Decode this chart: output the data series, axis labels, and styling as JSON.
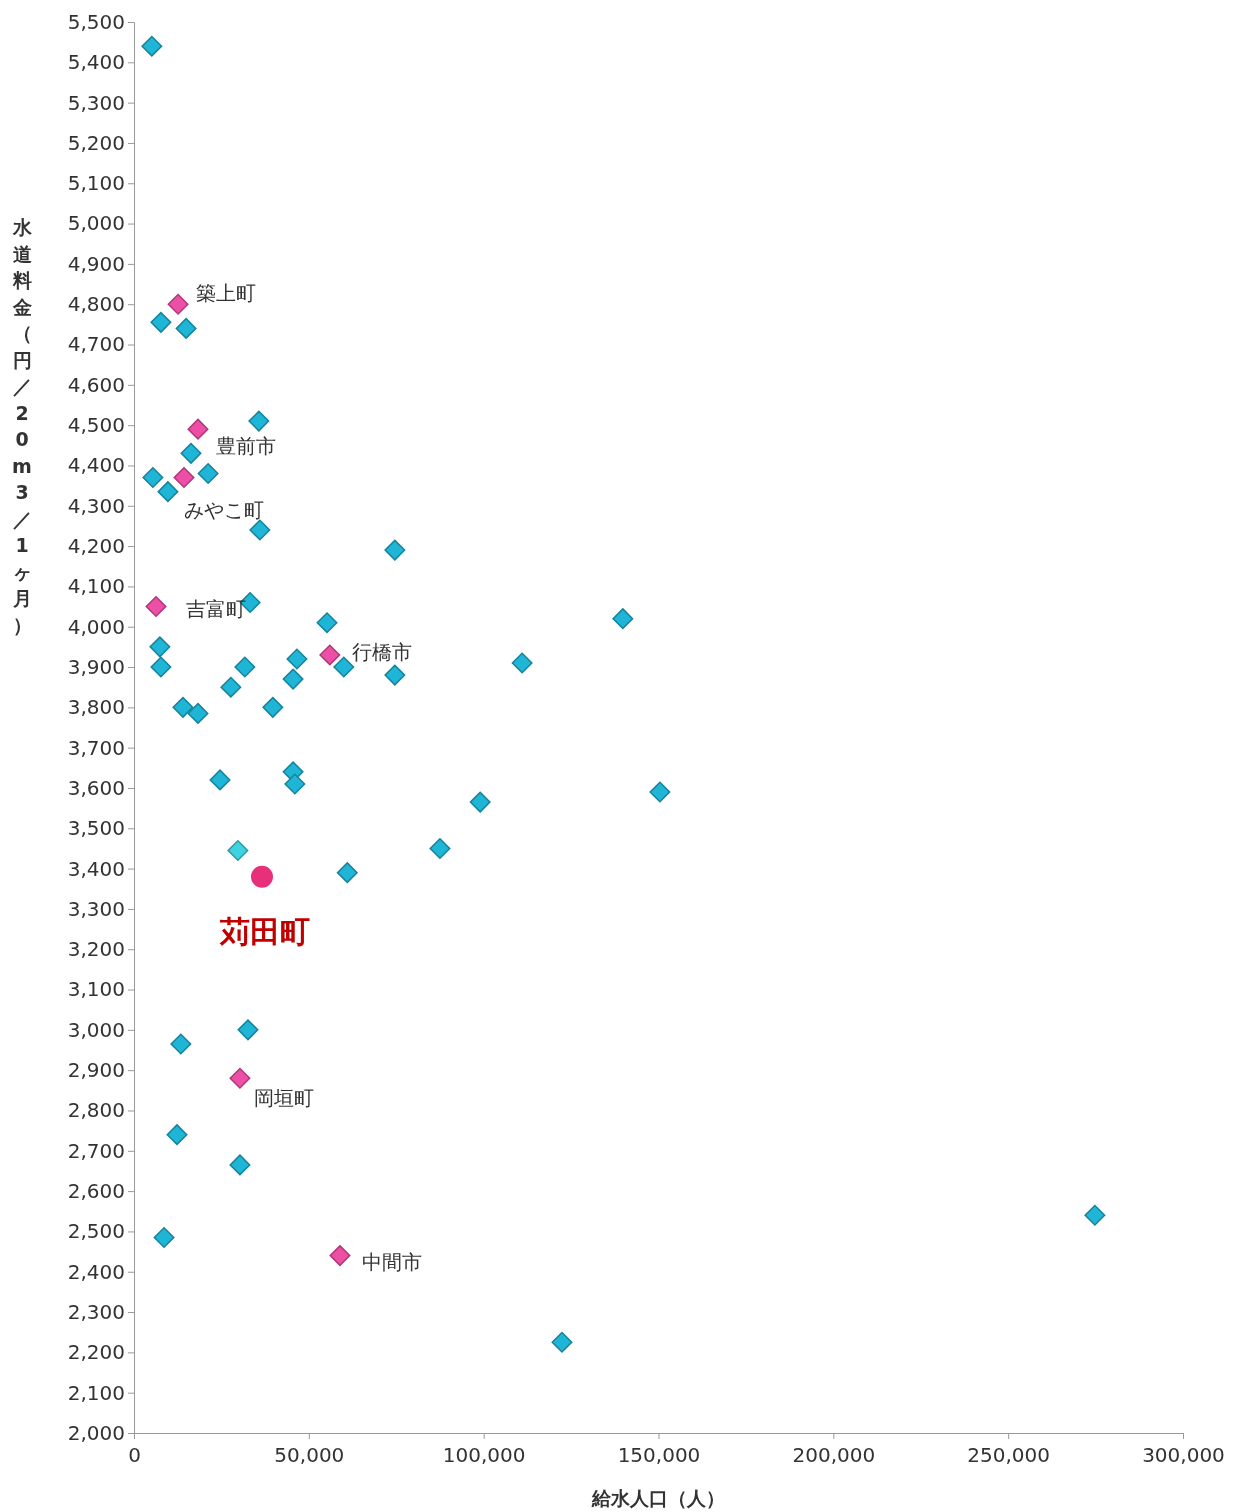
{
  "chart_data": {
    "type": "scatter",
    "xlabel": "給水人口（人）",
    "ylabel": "水道料金（円／20m3／1ヶ月）",
    "xlim": [
      0,
      300000
    ],
    "ylim": [
      2000,
      5500
    ],
    "xticks": [
      0,
      {
        "value": 50000,
        "label": "50,000"
      },
      {
        "value": 100000,
        "label": "100,000"
      },
      {
        "value": 150000,
        "label": "150,000"
      },
      {
        "value": 200000,
        "label": "200,000"
      },
      {
        "value": 250000,
        "label": "250,000"
      },
      {
        "value": 300000,
        "label": "300,000"
      }
    ],
    "yticks": [
      {
        "value": 2000,
        "label": "2,000"
      },
      {
        "value": 2100,
        "label": "2,100"
      },
      {
        "value": 2200,
        "label": "2,200"
      },
      {
        "value": 2300,
        "label": "2,300"
      },
      {
        "value": 2400,
        "label": "2,400"
      },
      {
        "value": 2500,
        "label": "2,500"
      },
      {
        "value": 2600,
        "label": "2,600"
      },
      {
        "value": 2700,
        "label": "2,700"
      },
      {
        "value": 2800,
        "label": "2,800"
      },
      {
        "value": 2900,
        "label": "2,900"
      },
      {
        "value": 3000,
        "label": "3,000"
      },
      {
        "value": 3100,
        "label": "3,100"
      },
      {
        "value": 3200,
        "label": "3,200"
      },
      {
        "value": 3300,
        "label": "3,300"
      },
      {
        "value": 3400,
        "label": "3,400"
      },
      {
        "value": 3500,
        "label": "3,500"
      },
      {
        "value": 3600,
        "label": "3,600"
      },
      {
        "value": 3700,
        "label": "3,700"
      },
      {
        "value": 3800,
        "label": "3,800"
      },
      {
        "value": 3900,
        "label": "3,900"
      },
      {
        "value": 4000,
        "label": "4,000"
      },
      {
        "value": 4100,
        "label": "4,100"
      },
      {
        "value": 4200,
        "label": "4,200"
      },
      {
        "value": 4300,
        "label": "4,300"
      },
      {
        "value": 4400,
        "label": "4,400"
      },
      {
        "value": 4500,
        "label": "4,500"
      },
      {
        "value": 4600,
        "label": "4,600"
      },
      {
        "value": 4700,
        "label": "4,700"
      },
      {
        "value": 4800,
        "label": "4,800"
      },
      {
        "value": 4900,
        "label": "4,900"
      },
      {
        "value": 5000,
        "label": "5,000"
      },
      {
        "value": 5100,
        "label": "5,100"
      },
      {
        "value": 5200,
        "label": "5,200"
      },
      {
        "value": 5300,
        "label": "5,300"
      },
      {
        "value": 5400,
        "label": "5,400"
      },
      {
        "value": 5500,
        "label": "5,500"
      }
    ],
    "grid": false,
    "series": [
      {
        "color": "#1fb5d6",
        "marker": "diamond",
        "x": [
          5100,
          7700,
          14900,
          35700,
          16300,
          21200,
          5400,
          9700,
          36000,
          74600,
          33200,
          139800,
          55200,
          7400,
          7700,
          31700,
          46600,
          60000,
          111000,
          74600,
          27700,
          45500,
          14000,
          18300,
          39700,
          24600,
          45500,
          46000,
          99000,
          150400,
          87500,
          61000,
          32600,
          13400,
          12300,
          30300,
          8600,
          274800,
          122400
        ],
        "values": [
          5440,
          4755,
          4740,
          4510,
          4430,
          4380,
          4370,
          4335,
          4240,
          4190,
          4060,
          4020,
          4010,
          3950,
          3900,
          3900,
          3920,
          3900,
          3910,
          3880,
          3850,
          3870,
          3800,
          3785,
          3800,
          3620,
          3640,
          3610,
          3565,
          3590,
          3450,
          3390,
          3000,
          2965,
          2740,
          2665,
          2485,
          2540,
          2225
        ]
      },
      {
        "color": "#3ed3e0",
        "marker": "diamond",
        "x": [
          29700
        ],
        "values": [
          3445
        ]
      },
      {
        "color": "#ee4fa6",
        "marker": "diamond",
        "x": [
          12600,
          18300,
          14300,
          6300,
          56000,
          30300,
          58900
        ],
        "values": [
          4800,
          4490,
          4370,
          4050,
          3930,
          2880,
          2440
        ]
      },
      {
        "color": "#e8307a",
        "marker": "circle",
        "x": [
          36600
        ],
        "values": [
          3380
        ]
      }
    ],
    "annotations": [
      {
        "text": "築上町",
        "x": 12600,
        "y": 4800
      },
      {
        "text": "豊前市",
        "x": 18300,
        "y": 4490
      },
      {
        "text": "みやこ町",
        "x": 14300,
        "y": 4370
      },
      {
        "text": "吉富町",
        "x": 6300,
        "y": 4050
      },
      {
        "text": "行橋市",
        "x": 56000,
        "y": 3930
      },
      {
        "text": "岡垣町",
        "x": 30300,
        "y": 2880
      },
      {
        "text": "中間市",
        "x": 58900,
        "y": 2440
      },
      {
        "text": "苅田町",
        "x": 36600,
        "y": 3380
      }
    ]
  }
}
